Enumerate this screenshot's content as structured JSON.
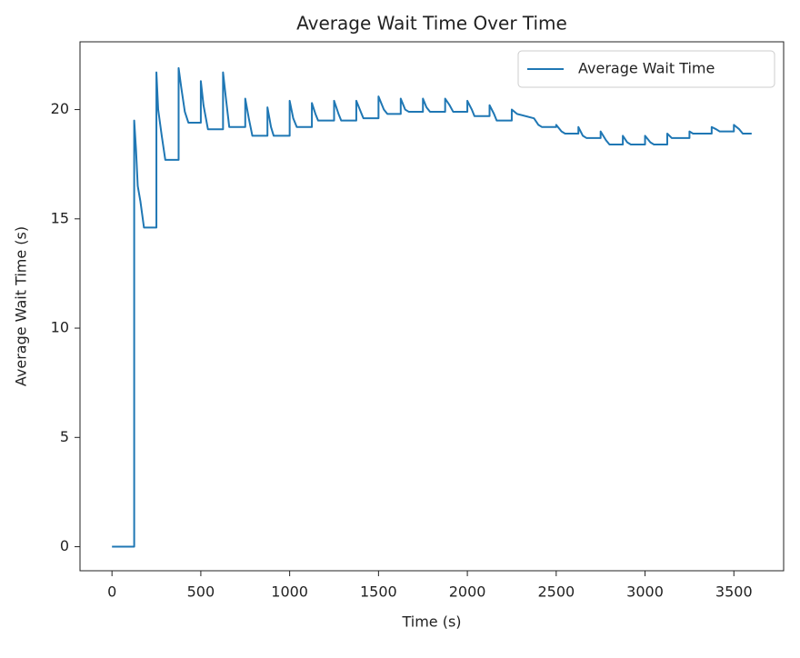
{
  "chart_data": {
    "type": "line",
    "title": "Average Wait Time Over Time",
    "x_label": "Time (s)",
    "y_label": "Average Wait Time (s)",
    "x": [
      0,
      125,
      125,
      135,
      145,
      160,
      180,
      250,
      250,
      260,
      280,
      300,
      375,
      375,
      390,
      410,
      430,
      500,
      500,
      515,
      540,
      625,
      625,
      640,
      660,
      750,
      750,
      770,
      790,
      875,
      875,
      895,
      910,
      1000,
      1000,
      1020,
      1040,
      1125,
      1125,
      1145,
      1160,
      1250,
      1250,
      1275,
      1290,
      1375,
      1375,
      1400,
      1415,
      1500,
      1500,
      1530,
      1550,
      1625,
      1625,
      1650,
      1670,
      1750,
      1750,
      1770,
      1790,
      1875,
      1875,
      1900,
      1920,
      2000,
      2000,
      2025,
      2040,
      2125,
      2125,
      2150,
      2165,
      2250,
      2250,
      2280,
      2375,
      2400,
      2420,
      2500,
      2500,
      2530,
      2550,
      2625,
      2625,
      2650,
      2670,
      2750,
      2750,
      2780,
      2800,
      2875,
      2875,
      2900,
      2920,
      3000,
      3000,
      3030,
      3050,
      3125,
      3125,
      3150,
      3160,
      3250,
      3250,
      3270,
      3375,
      3375,
      3400,
      3420,
      3500,
      3500,
      3530,
      3550,
      3600
    ],
    "series": [
      {
        "name": "Average Wait Time",
        "color": "#1f77b4",
        "values": [
          0,
          0,
          19.5,
          18.2,
          16.5,
          15.8,
          14.6,
          14.6,
          21.7,
          20,
          18.8,
          17.7,
          17.7,
          21.9,
          21,
          19.9,
          19.4,
          19.4,
          21.3,
          20.2,
          19.1,
          19.1,
          21.7,
          20.6,
          19.2,
          19.2,
          20.5,
          19.6,
          18.8,
          18.8,
          20.1,
          19.2,
          18.8,
          18.8,
          20.4,
          19.6,
          19.2,
          19.2,
          20.3,
          19.8,
          19.5,
          19.5,
          20.4,
          19.8,
          19.5,
          19.5,
          20.4,
          19.9,
          19.6,
          19.6,
          20.6,
          20,
          19.8,
          19.8,
          20.5,
          20,
          19.9,
          19.9,
          20.5,
          20.1,
          19.9,
          19.9,
          20.5,
          20.2,
          19.9,
          19.9,
          20.4,
          20,
          19.7,
          19.7,
          20.2,
          19.8,
          19.5,
          19.5,
          20,
          19.8,
          19.6,
          19.3,
          19.2,
          19.2,
          19.3,
          19,
          18.9,
          18.9,
          19.2,
          18.8,
          18.7,
          18.7,
          19,
          18.6,
          18.4,
          18.4,
          18.8,
          18.5,
          18.4,
          18.4,
          18.8,
          18.5,
          18.4,
          18.4,
          18.9,
          18.7,
          18.7,
          18.7,
          19,
          18.9,
          18.9,
          19.2,
          19.1,
          19,
          19,
          19.3,
          19.1,
          18.9,
          18.9
        ]
      }
    ],
    "xlim": [
      -180,
      3780
    ],
    "ylim": [
      -1.1,
      23.1
    ],
    "xticks": [
      0,
      500,
      1000,
      1500,
      2000,
      2500,
      3000,
      3500
    ],
    "yticks": [
      0,
      5,
      10,
      15,
      20
    ],
    "legend": "upper right"
  }
}
